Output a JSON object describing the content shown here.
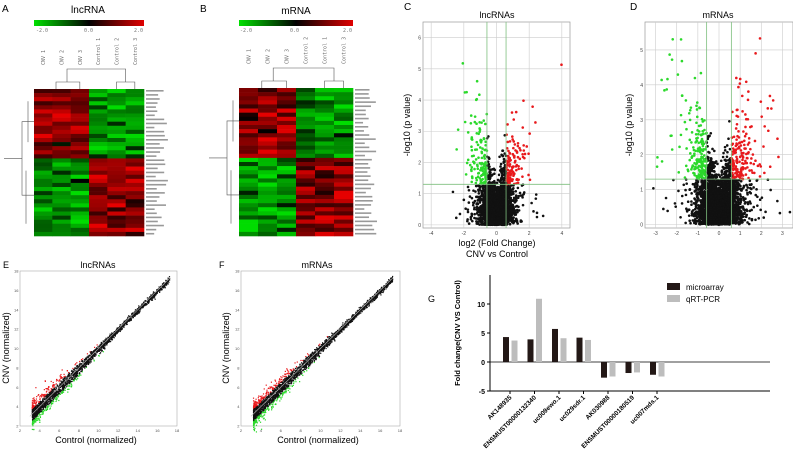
{
  "panels": {
    "A": {
      "letter": "A",
      "title": "lncRNA",
      "scale_min": "-2.0",
      "scale_mid": "0.0",
      "scale_max": "2.0",
      "samples": [
        "CNV 1",
        "CNV 2",
        "CNV 3",
        "Control 1",
        "Control 2",
        "Control 3"
      ]
    },
    "B": {
      "letter": "B",
      "title": "mRNA",
      "scale_min": "-2.0",
      "scale_mid": "0.0",
      "scale_max": "2.0",
      "samples": [
        "CNV 1",
        "CNV 2",
        "CNV 3",
        "Control 2",
        "Control 1",
        "Control 3"
      ]
    },
    "C": {
      "letter": "C",
      "title": "lncRNAs",
      "xlabel": "log2 (Fold Change)",
      "xlabel2": "CNV vs Control",
      "ylabel": "-log10 (p value)"
    },
    "D": {
      "letter": "D",
      "title": "mRNAs",
      "ylabel": "-log10 (p value)"
    },
    "E": {
      "letter": "E",
      "title": "lncRNAs",
      "xlabel": "Control (normalized)",
      "ylabel": "CNV (normalized)"
    },
    "F": {
      "letter": "F",
      "title": "mRNAs",
      "xlabel": "Control (normalized)",
      "ylabel": "CNV (normalized)"
    },
    "G": {
      "letter": "G"
    }
  },
  "colors": {
    "up": "#e8191c",
    "down": "#2bd92b",
    "ns": "#111111",
    "microarray": "#231816",
    "qrtpcr": "#bdbdbd",
    "threshold": "#7fbf7f"
  },
  "chart_data": [
    {
      "panel": "C",
      "type": "scatter",
      "xlim": [
        -4.5,
        4.5
      ],
      "ylim": [
        -0.1,
        6.5
      ],
      "xticks": [
        -4,
        -2,
        0,
        2,
        4
      ],
      "yticks": [
        0,
        1,
        2,
        3,
        4,
        5,
        6
      ],
      "fold_change_thresholds": [
        -0.585,
        0.585
      ],
      "p_threshold": 1.3,
      "grid": true
    },
    {
      "panel": "D",
      "type": "scatter",
      "xlim": [
        -3.5,
        3.5
      ],
      "ylim": [
        -0.1,
        5.8
      ],
      "xticks": [
        -3,
        -2,
        -1,
        0,
        1,
        2,
        3
      ],
      "yticks": [
        0,
        1,
        2,
        3,
        4,
        5
      ],
      "fold_change_thresholds": [
        -0.585,
        0.585
      ],
      "p_threshold": 1.3,
      "grid": true
    },
    {
      "panel": "E",
      "type": "scatter",
      "xlim": [
        2,
        18
      ],
      "ylim": [
        2,
        18
      ],
      "xticks": [
        2,
        4,
        6,
        8,
        10,
        12,
        14,
        16,
        18
      ],
      "yticks": [
        2,
        4,
        6,
        8,
        10,
        12,
        14,
        16,
        18
      ]
    },
    {
      "panel": "F",
      "type": "scatter",
      "xlim": [
        2,
        18
      ],
      "ylim": [
        2,
        18
      ],
      "xticks": [
        2,
        4,
        6,
        8,
        10,
        12,
        14,
        16,
        18
      ],
      "yticks": [
        2,
        4,
        6,
        8,
        10,
        12,
        14,
        16,
        18
      ]
    },
    {
      "panel": "G",
      "type": "bar",
      "ylabel": "Fold change(CNV VS Control)",
      "ylim": [
        -5,
        15
      ],
      "yticks": [
        -5,
        0,
        5,
        10
      ],
      "categories": [
        "AK148935",
        "ENSMUST00000132340",
        "uc009ewo.1",
        "uc029sdr.1",
        "AK030988",
        "ENSMUST00000180519",
        "uc007mds.1"
      ],
      "series": [
        {
          "name": "microarray",
          "values": [
            4.3,
            3.9,
            5.7,
            4.2,
            -2.7,
            -1.9,
            -2.2
          ]
        },
        {
          "name": "qRT-PCR",
          "values": [
            3.7,
            10.9,
            4.1,
            3.8,
            -2.5,
            -1.8,
            -2.5
          ]
        }
      ],
      "legend": "top-right"
    }
  ]
}
